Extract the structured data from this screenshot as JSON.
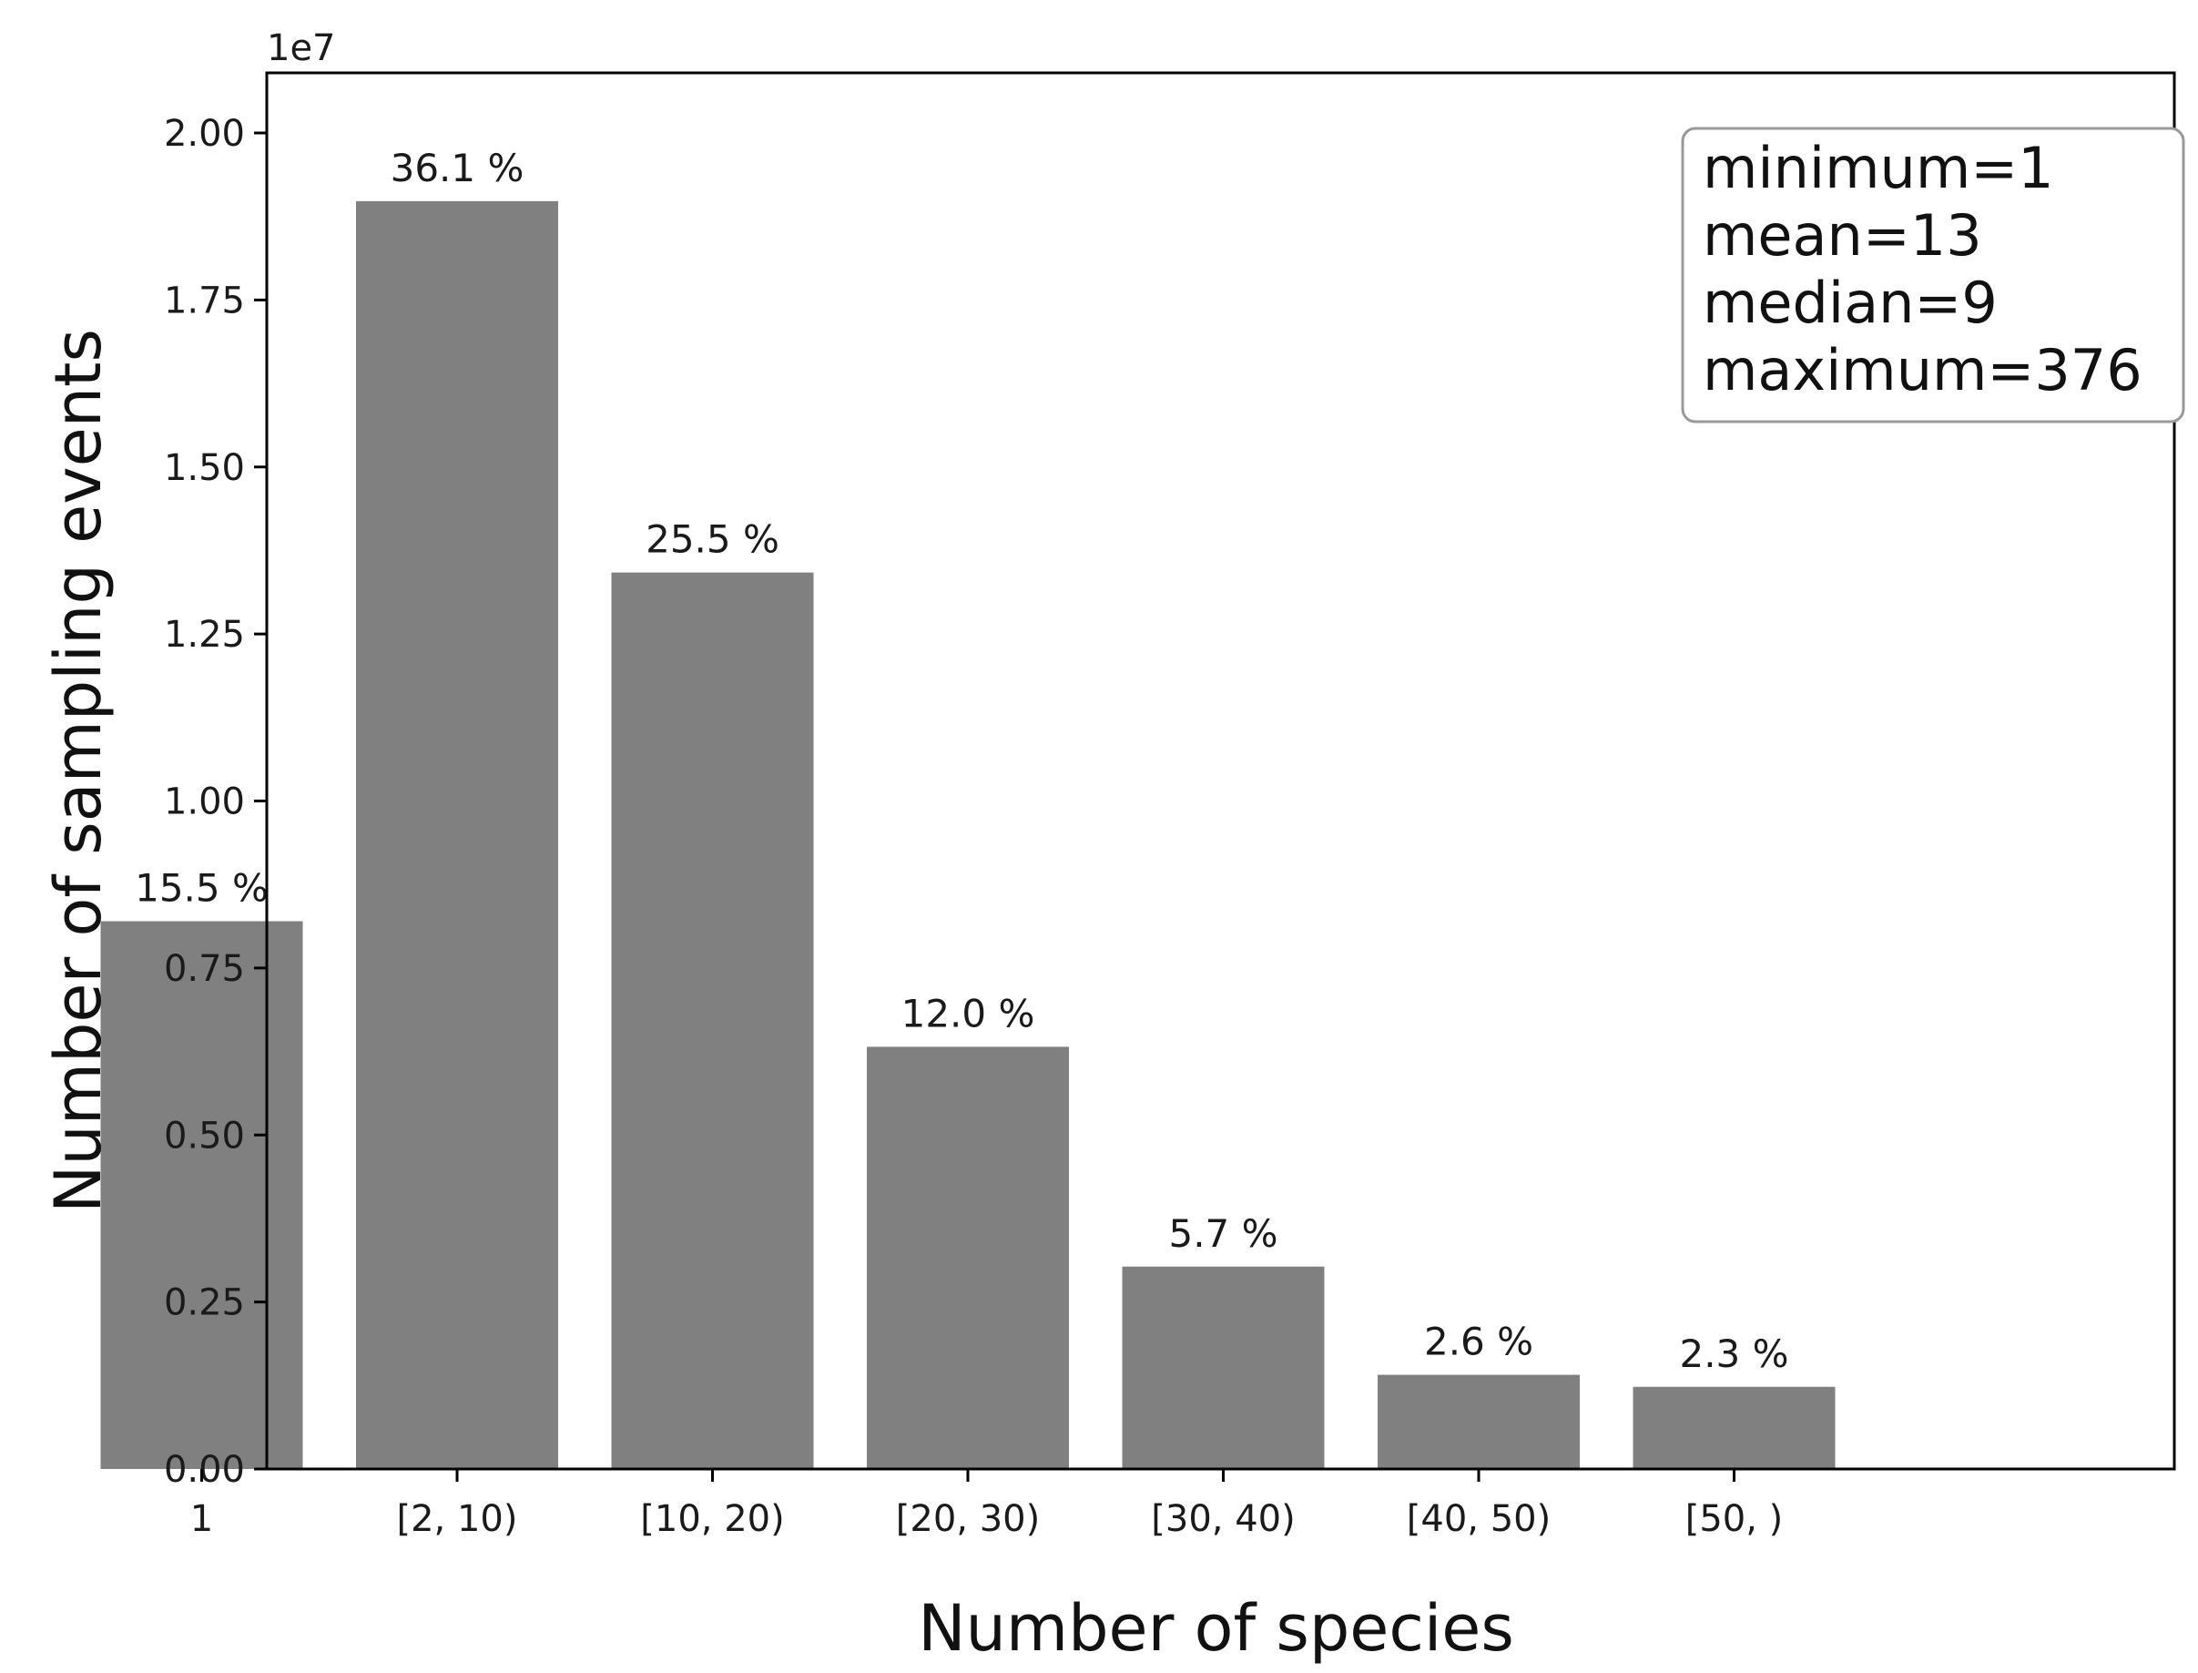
{
  "chart_data": {
    "type": "bar",
    "title": "",
    "xlabel": "Number of species",
    "ylabel": "Number of sampling events",
    "y_scale_label": "1e7",
    "y_multiplier": 10000000,
    "categories": [
      "1",
      "[2, 10)",
      "[10, 20)",
      "[20, 30)",
      "[30, 40)",
      "[40, 50)",
      "[50, )"
    ],
    "values": [
      8200000,
      18980000,
      13420000,
      6320000,
      3030000,
      1410000,
      1230000
    ],
    "bar_labels": [
      "15.5 %",
      "36.1 %",
      "25.5 %",
      "12.0 %",
      "5.7 %",
      "2.6 %",
      "2.3 %"
    ],
    "ylim": [
      0,
      2.09
    ],
    "yticks": [
      0.0,
      0.25,
      0.5,
      0.75,
      1.0,
      1.25,
      1.5,
      1.75,
      2.0
    ],
    "ytick_labels": [
      "0.00",
      "0.25",
      "0.50",
      "0.75",
      "1.00",
      "1.25",
      "1.50",
      "1.75",
      "2.00"
    ],
    "grid": false,
    "bar_color": "#808080",
    "stats_box": {
      "position": "top-right",
      "lines": [
        "minimum=1",
        "mean=13",
        "median=9",
        "maximum=376"
      ]
    }
  }
}
